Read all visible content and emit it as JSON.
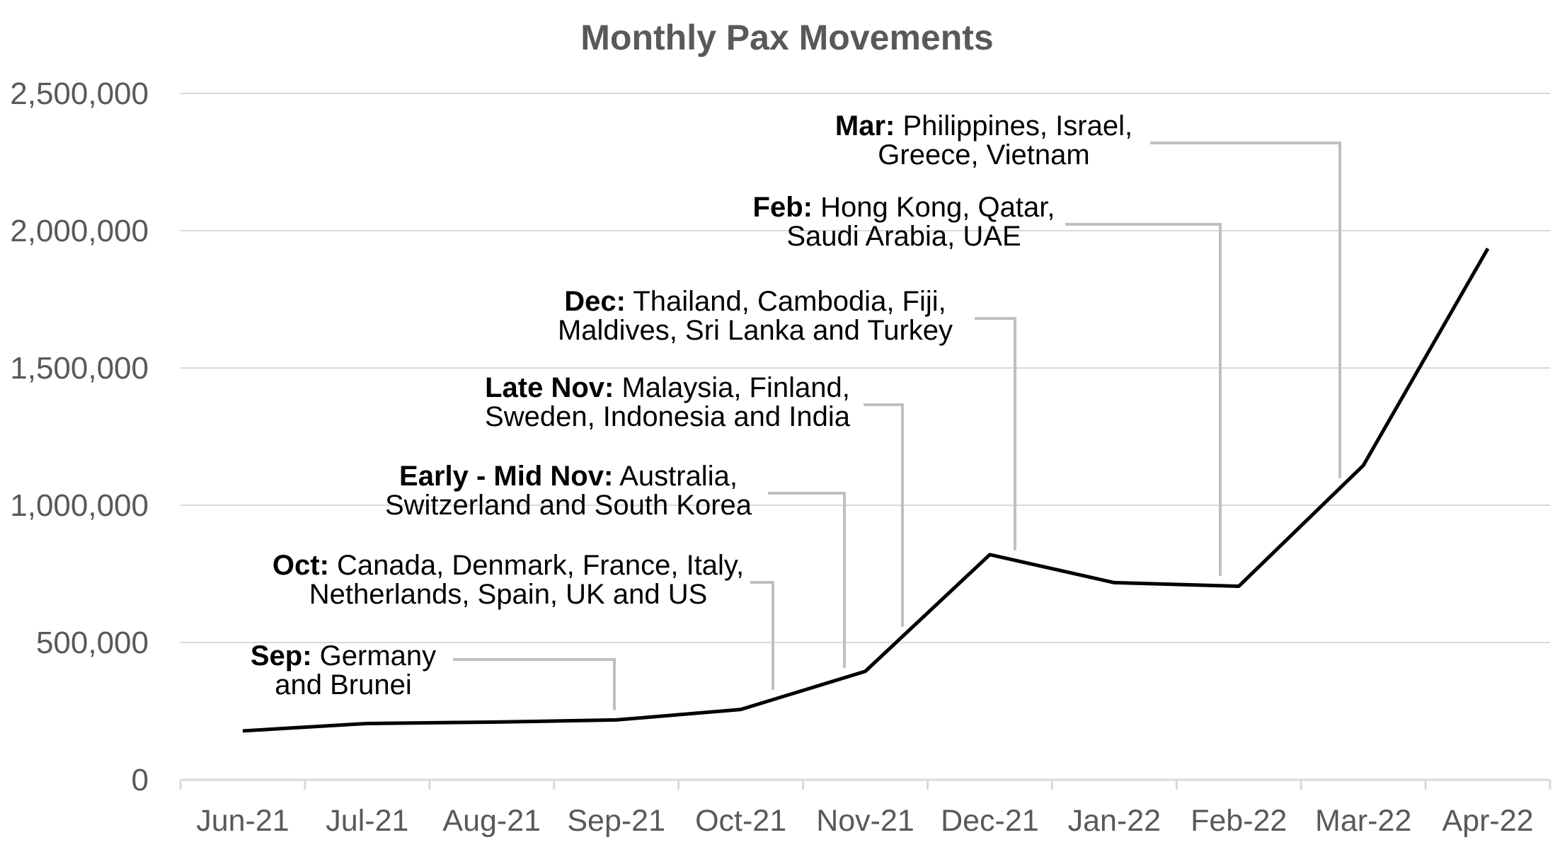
{
  "chart_data": {
    "type": "line",
    "title": "Monthly Pax Movements",
    "xlabel": "",
    "ylabel": "",
    "categories": [
      "Jun-21",
      "Jul-21",
      "Aug-21",
      "Sep-21",
      "Oct-21",
      "Nov-21",
      "Dec-21",
      "Jan-22",
      "Feb-22",
      "Mar-22",
      "Apr-22"
    ],
    "series": [
      {
        "values": [
          178000,
          205000,
          210000,
          218000,
          256000,
          395000,
          820000,
          718000,
          705000,
          1145000,
          1935000
        ]
      }
    ],
    "ylim": [
      0,
      2500000
    ],
    "yticks": [
      "0",
      "500,000",
      "1,000,000",
      "1,500,000",
      "2,000,000",
      "2,500,000"
    ],
    "grid": true,
    "legend": "none",
    "colors": {
      "line": "#000000",
      "grid": "#d9d9d9",
      "leader": "#bfbfbf",
      "text": "#595959"
    },
    "annotations": [
      {
        "bold": "Sep:",
        "rest": " Germany",
        "line2": "and Brunei",
        "month": "Sep-21"
      },
      {
        "bold": "Oct:",
        "rest": " Canada, Denmark, France, Italy,",
        "line2": "Netherlands, Spain, UK and US",
        "month": "Oct-21"
      },
      {
        "bold": "Early - Mid Nov:",
        "rest": " Australia,",
        "line2": "Switzerland and South Korea",
        "month": "Nov-21"
      },
      {
        "bold": "Late Nov:",
        "rest": " Malaysia, Finland,",
        "line2": "Sweden, Indonesia and India",
        "month": "Nov-21"
      },
      {
        "bold": "Dec:",
        "rest": " Thailand, Cambodia, Fiji,",
        "line2": "Maldives, Sri Lanka and Turkey",
        "month": "Dec-21"
      },
      {
        "bold": "Feb:",
        "rest": " Hong Kong, Qatar,",
        "line2": "Saudi Arabia, UAE",
        "month": "Feb-22"
      },
      {
        "bold": "Mar:",
        "rest": " Philippines, Israel,",
        "line2": "Greece, Vietnam",
        "month": "Mar-22"
      }
    ]
  }
}
